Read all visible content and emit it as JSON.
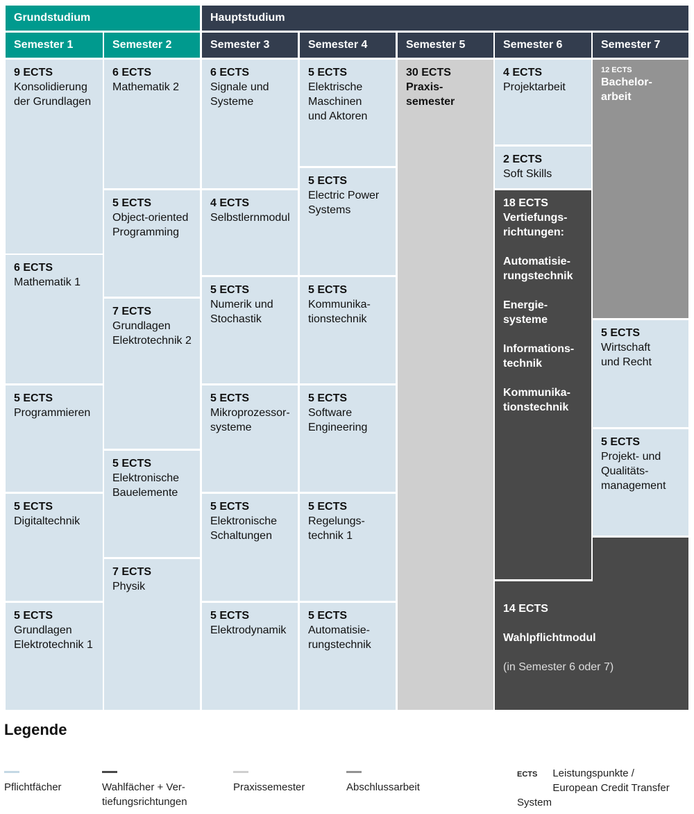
{
  "headers": {
    "grundstudium": "Grundstudium",
    "hauptstudium": "Hauptstudium",
    "semesters": [
      "Semester 1",
      "Semester 2",
      "Semester 3",
      "Semester 4",
      "Semester 5",
      "Semester 6",
      "Semester 7"
    ]
  },
  "colors": {
    "grundstudium": "#009a8e",
    "hauptstudium": "#333d4e",
    "pflichtfaecher": "#d6e3ec",
    "praxissemester": "#cfcfcf",
    "wahlfaecher": "#494949",
    "abschlussarbeit": "#939393"
  },
  "modules": [
    {
      "ects": "9 ECTS",
      "name": "Konsolidierung\nder Grundlagen",
      "type": "pflicht"
    },
    {
      "ects": "6 ECTS",
      "name": "Mathematik 1",
      "type": "pflicht"
    },
    {
      "ects": "5 ECTS",
      "name": "Programmieren",
      "type": "pflicht"
    },
    {
      "ects": "5 ECTS",
      "name": "Digitaltechnik",
      "type": "pflicht"
    },
    {
      "ects": "5 ECTS",
      "name": "Grundlagen\nElektrotechnik 1",
      "type": "pflicht"
    },
    {
      "ects": "6 ECTS",
      "name": "Mathematik 2",
      "type": "pflicht"
    },
    {
      "ects": "5 ECTS",
      "name": "Object-oriented\nProgramming",
      "type": "pflicht"
    },
    {
      "ects": "7 ECTS",
      "name": "Grundlagen\nElektrotechnik 2",
      "type": "pflicht"
    },
    {
      "ects": "5 ECTS",
      "name": "Elektronische\nBauelemente",
      "type": "pflicht"
    },
    {
      "ects": "7 ECTS",
      "name": "Physik",
      "type": "pflicht"
    },
    {
      "ects": "6 ECTS",
      "name": "Signale und\nSysteme",
      "type": "pflicht"
    },
    {
      "ects": "4 ECTS",
      "name": "Selbstlernmodul",
      "type": "pflicht"
    },
    {
      "ects": "5 ECTS",
      "name": "Numerik und\nStochastik",
      "type": "pflicht"
    },
    {
      "ects": "5 ECTS",
      "name": "Mikroprozessor-\nsysteme",
      "type": "pflicht"
    },
    {
      "ects": "5 ECTS",
      "name": "Elektronische\nSchaltungen",
      "type": "pflicht"
    },
    {
      "ects": "5 ECTS",
      "name": "Elektrodynamik",
      "type": "pflicht"
    },
    {
      "ects": "5 ECTS",
      "name": "Elektrische\nMaschinen\nund Aktoren",
      "type": "pflicht"
    },
    {
      "ects": "5 ECTS",
      "name": "Electric Power\nSystems",
      "type": "pflicht"
    },
    {
      "ects": "5 ECTS",
      "name": "Kommunika-\ntionstechnik",
      "type": "pflicht"
    },
    {
      "ects": "5 ECTS",
      "name": "Software\nEngineering",
      "type": "pflicht"
    },
    {
      "ects": "5 ECTS",
      "name": "Regelungs-\ntechnik 1",
      "type": "pflicht"
    },
    {
      "ects": "5 ECTS",
      "name": "Automatisie-\nrungstechnik",
      "type": "pflicht"
    },
    {
      "ects": "30 ECTS",
      "name": "Praxis-\nsemester",
      "type": "praxis"
    },
    {
      "ects": "4 ECTS",
      "name": "Projektarbeit",
      "type": "pflicht"
    },
    {
      "ects": "2 ECTS",
      "name": "Soft Skills",
      "type": "pflicht"
    },
    {
      "ects": "18 ECTS",
      "name": "Vertiefungs-\nrichtungen:\n\nAutomatisie-\nrungstechnik\n\nEnergie-\nsysteme\n\nInformations-\ntechnik\n\nKommunika-\ntionstechnik",
      "type": "wahl"
    },
    {
      "ects": "12 ECTS",
      "name": "Bachelor-\narbeit",
      "type": "abschluss"
    },
    {
      "ects": "5 ECTS",
      "name": "Wirtschaft\nund Recht",
      "type": "pflicht"
    },
    {
      "ects": "5 ECTS",
      "name": "Projekt- und\nQualitäts-\nmanagement",
      "type": "pflicht"
    }
  ],
  "wahlpflicht": {
    "ects": "14 ECTS",
    "name": "Wahlpflichtmodul",
    "note": "(in Semester 6 oder 7)"
  },
  "legend": {
    "title": "Legende",
    "items": [
      "Pflichtfächer",
      "Wahlfächer + Ver-\ntiefungsrichtungen",
      "Praxissemester",
      "Abschlussarbeit"
    ],
    "ects_abbr": "ECTS",
    "ects_desc": "Leistungspunkte /\nEuropean Credit Transfer System"
  }
}
